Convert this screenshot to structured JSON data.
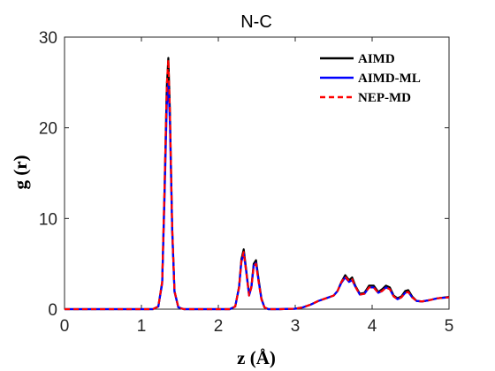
{
  "chart_data": {
    "type": "line",
    "title": "N-C",
    "xlabel": "z (Å)",
    "ylabel": "g (r)",
    "xlim": [
      0,
      5
    ],
    "ylim": [
      0,
      30
    ],
    "x_ticks": [
      0,
      1,
      2,
      3,
      4,
      5
    ],
    "y_ticks": [
      0,
      10,
      20,
      30
    ],
    "grid": false,
    "legend_position": "top-right",
    "series": [
      {
        "name": "AIMD",
        "color": "#000000",
        "style": "solid",
        "x": [
          0,
          1.15,
          1.22,
          1.27,
          1.3,
          1.33,
          1.35,
          1.37,
          1.4,
          1.43,
          1.48,
          1.55,
          2.15,
          2.22,
          2.27,
          2.3,
          2.33,
          2.36,
          2.4,
          2.43,
          2.46,
          2.49,
          2.52,
          2.56,
          2.6,
          2.65,
          2.8,
          3.0,
          3.1,
          3.2,
          3.3,
          3.4,
          3.5,
          3.55,
          3.6,
          3.65,
          3.7,
          3.74,
          3.78,
          3.84,
          3.9,
          3.96,
          4.02,
          4.08,
          4.13,
          4.18,
          4.23,
          4.28,
          4.33,
          4.38,
          4.43,
          4.47,
          4.52,
          4.58,
          4.65,
          4.75,
          4.85,
          5.0
        ],
        "y": [
          0,
          0,
          0.3,
          3.0,
          13.0,
          24.5,
          27.7,
          22.0,
          9.0,
          2.0,
          0.2,
          0,
          0,
          0.3,
          2.5,
          5.5,
          6.6,
          4.5,
          1.6,
          2.5,
          5.0,
          5.4,
          3.5,
          1.2,
          0.2,
          0,
          0,
          0.05,
          0.2,
          0.5,
          0.9,
          1.2,
          1.5,
          2.0,
          3.0,
          3.75,
          3.2,
          3.5,
          2.6,
          1.7,
          1.8,
          2.6,
          2.6,
          1.9,
          2.2,
          2.6,
          2.4,
          1.5,
          1.2,
          1.4,
          2.0,
          2.1,
          1.4,
          0.9,
          0.85,
          1.0,
          1.2,
          1.35
        ]
      },
      {
        "name": "AIMD-ML",
        "color": "#0000ff",
        "style": "solid",
        "x": [
          0,
          1.15,
          1.22,
          1.27,
          1.3,
          1.33,
          1.35,
          1.37,
          1.4,
          1.43,
          1.48,
          1.55,
          2.15,
          2.22,
          2.27,
          2.3,
          2.33,
          2.36,
          2.4,
          2.43,
          2.46,
          2.49,
          2.52,
          2.56,
          2.6,
          2.65,
          2.8,
          3.0,
          3.1,
          3.2,
          3.3,
          3.4,
          3.5,
          3.55,
          3.6,
          3.65,
          3.7,
          3.74,
          3.78,
          3.84,
          3.9,
          3.96,
          4.02,
          4.08,
          4.13,
          4.18,
          4.23,
          4.28,
          4.33,
          4.38,
          4.43,
          4.47,
          4.52,
          4.58,
          4.65,
          4.75,
          4.85,
          5.0
        ],
        "y": [
          0,
          0,
          0.3,
          2.8,
          12.0,
          22.5,
          25.0,
          20.5,
          8.5,
          1.9,
          0.2,
          0,
          0,
          0.3,
          2.4,
          5.2,
          6.2,
          4.3,
          1.5,
          2.4,
          4.8,
          5.1,
          3.3,
          1.1,
          0.2,
          0,
          0,
          0.05,
          0.2,
          0.5,
          0.9,
          1.2,
          1.5,
          2.0,
          2.9,
          3.5,
          3.0,
          3.2,
          2.5,
          1.6,
          1.7,
          2.4,
          2.4,
          1.8,
          2.0,
          2.4,
          2.2,
          1.4,
          1.1,
          1.3,
          1.8,
          1.9,
          1.3,
          0.9,
          0.85,
          1.0,
          1.2,
          1.3
        ]
      },
      {
        "name": "NEP-MD",
        "color": "#ff0000",
        "style": "dashed",
        "x": [
          0,
          1.15,
          1.22,
          1.27,
          1.3,
          1.33,
          1.35,
          1.37,
          1.4,
          1.43,
          1.48,
          1.55,
          2.15,
          2.22,
          2.27,
          2.3,
          2.33,
          2.36,
          2.4,
          2.43,
          2.46,
          2.49,
          2.52,
          2.56,
          2.6,
          2.65,
          2.8,
          3.0,
          3.1,
          3.2,
          3.3,
          3.4,
          3.5,
          3.55,
          3.6,
          3.65,
          3.7,
          3.74,
          3.78,
          3.84,
          3.9,
          3.96,
          4.02,
          4.08,
          4.13,
          4.18,
          4.23,
          4.28,
          4.33,
          4.38,
          4.43,
          4.47,
          4.52,
          4.58,
          4.65,
          4.75,
          4.85,
          5.0
        ],
        "y": [
          0,
          0,
          0.3,
          3.0,
          13.2,
          24.8,
          27.5,
          22.0,
          9.0,
          2.0,
          0.2,
          0,
          0,
          0.3,
          2.4,
          5.3,
          6.3,
          4.3,
          1.5,
          2.4,
          4.7,
          5.0,
          3.2,
          1.1,
          0.2,
          0,
          0,
          0.05,
          0.2,
          0.5,
          0.9,
          1.2,
          1.5,
          2.0,
          3.0,
          3.6,
          3.1,
          3.3,
          2.5,
          1.6,
          1.7,
          2.4,
          2.4,
          1.8,
          2.0,
          2.4,
          2.2,
          1.4,
          1.1,
          1.3,
          1.8,
          1.9,
          1.3,
          0.9,
          0.85,
          1.0,
          1.2,
          1.3
        ]
      }
    ]
  }
}
